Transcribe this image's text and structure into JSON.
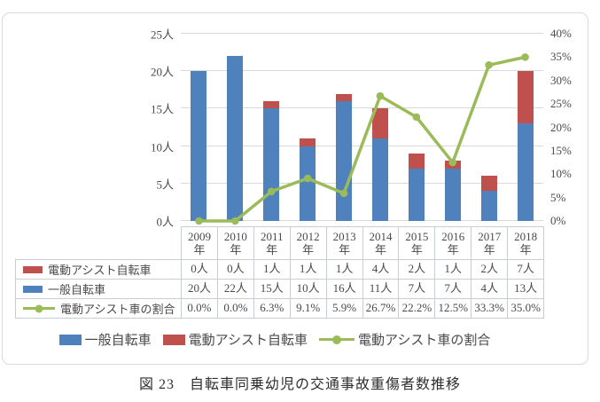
{
  "caption": "図 23　自転車同乗幼児の交通事故重傷者数推移",
  "colors": {
    "blue": "#4F81BD",
    "red": "#C0504D",
    "green": "#9BBB59",
    "grid": "#D9D9D9",
    "table_border": "#C8CDD5"
  },
  "chart_data": {
    "type": "bar",
    "subtype": "stacked-bars-with-line-overlay",
    "title": "図 23　自転車同乗幼児の交通事故重傷者数推移",
    "categories": [
      "2009年",
      "2010年",
      "2011年",
      "2012年",
      "2013年",
      "2014年",
      "2015年",
      "2016年",
      "2017年",
      "2018年"
    ],
    "series": [
      {
        "name": "一般自転車",
        "type": "bar",
        "stack": true,
        "axis": "left",
        "color": "#4F81BD",
        "values": [
          20,
          22,
          15,
          10,
          16,
          11,
          7,
          7,
          4,
          13
        ],
        "unit": "人"
      },
      {
        "name": "電動アシスト自転車",
        "type": "bar",
        "stack": true,
        "axis": "left",
        "color": "#C0504D",
        "values": [
          0,
          0,
          1,
          1,
          1,
          4,
          2,
          1,
          2,
          7
        ],
        "unit": "人"
      },
      {
        "name": "電動アシスト車の割合",
        "type": "line",
        "axis": "right",
        "color": "#9BBB59",
        "values": [
          0.0,
          0.0,
          6.3,
          9.1,
          5.9,
          26.7,
          22.2,
          12.5,
          33.3,
          35.0
        ],
        "unit": "%"
      }
    ],
    "left_axis": {
      "min": 0,
      "max": 25,
      "step": 5,
      "ticks": [
        "0人",
        "5人",
        "10人",
        "15人",
        "20人",
        "25人"
      ]
    },
    "right_axis": {
      "min": 0,
      "max": 40,
      "step": 5,
      "ticks": [
        "0%",
        "5%",
        "10%",
        "15%",
        "20%",
        "25%",
        "30%",
        "35%",
        "40%"
      ]
    },
    "grid": true,
    "legend_position": "bottom"
  },
  "table": {
    "years": [
      "2009",
      "2010",
      "2011",
      "2012",
      "2013",
      "2014",
      "2015",
      "2016",
      "2017",
      "2018"
    ],
    "year_suffix": "年",
    "rows": [
      {
        "label": "電動アシスト自転車",
        "key": "red-bar-swatch",
        "values": [
          "0人",
          "0人",
          "1人",
          "1人",
          "1人",
          "4人",
          "2人",
          "1人",
          "2人",
          "7人"
        ]
      },
      {
        "label": "一般自転車",
        "key": "blue-bar-swatch",
        "values": [
          "20人",
          "22人",
          "15人",
          "10人",
          "16人",
          "11人",
          "7人",
          "7人",
          "4人",
          "13人"
        ]
      },
      {
        "label": "電動アシスト車の割合",
        "key": "green-line-marker",
        "values": [
          "0.0%",
          "0.0%",
          "6.3%",
          "9.1%",
          "5.9%",
          "26.7%",
          "22.2%",
          "12.5%",
          "33.3%",
          "35.0%"
        ]
      }
    ]
  },
  "legend": {
    "items": [
      {
        "label": "一般自転車",
        "swatch": "bar",
        "color": "#4F81BD"
      },
      {
        "label": "電動アシスト自転車",
        "swatch": "bar",
        "color": "#C0504D"
      },
      {
        "label": "電動アシスト車の割合",
        "swatch": "line",
        "color": "#9BBB59"
      }
    ]
  }
}
